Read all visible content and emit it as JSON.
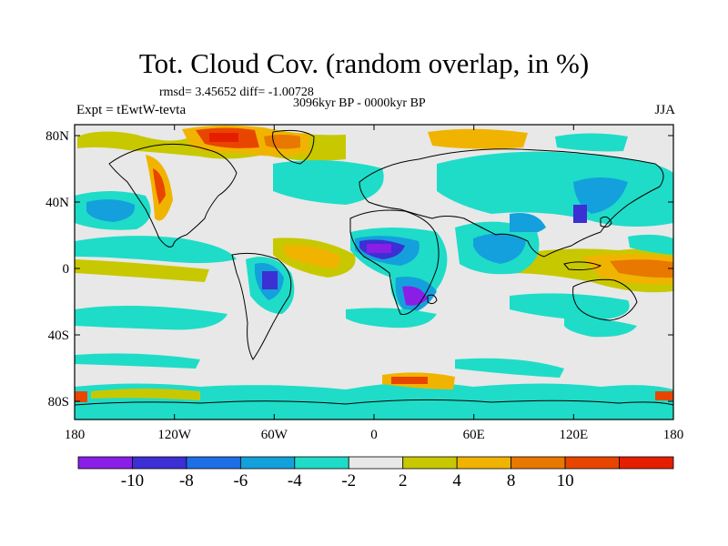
{
  "title": "Tot. Cloud Cov. (random overlap, in %)",
  "stats": "rmsd= 3.45652 diff= -1.00728",
  "period": "3096kyr BP - 0000kyr BP",
  "experiment": "Expt = tEwtW-tevta",
  "season": "JJA",
  "axes": {
    "x_ticks": [
      "180",
      "120W",
      "60W",
      "0",
      "60E",
      "120E",
      "180"
    ],
    "y_ticks": [
      "80N",
      "40N",
      "0",
      "40S",
      "80S"
    ]
  },
  "colorbar": {
    "labels": [
      "-10",
      "-8",
      "-6",
      "-4",
      "-2",
      "2",
      "4",
      "8",
      "10"
    ],
    "colors": [
      "#8a1ee6",
      "#3c2fd4",
      "#1e6ee6",
      "#14a0dc",
      "#1edcc8",
      "#e8e8e8",
      "#c8c800",
      "#f0b400",
      "#e87800",
      "#e84600",
      "#e61e00"
    ]
  },
  "colors": {
    "land_outline": "#000000",
    "neutral": "#e8e8e8"
  }
}
